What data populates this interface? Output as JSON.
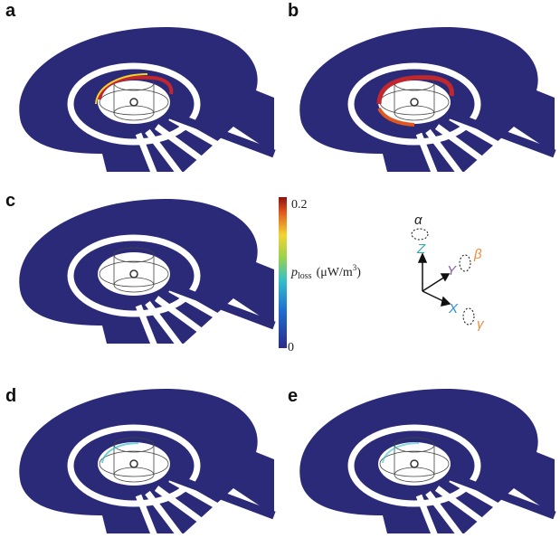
{
  "panels": [
    {
      "label": "a"
    },
    {
      "label": "b"
    },
    {
      "label": "c"
    },
    {
      "label": "d"
    },
    {
      "label": "e"
    }
  ],
  "colorbar": {
    "max_label": "0.2",
    "min_label": "0",
    "symbol": "p",
    "subscript": "loss",
    "unit": "(μW/m",
    "exponent": "3",
    "unit_close": ")"
  },
  "axes": {
    "alpha": "α",
    "z": "Z",
    "y": "Y",
    "beta": "β",
    "x": "X",
    "gamma": "γ"
  }
}
